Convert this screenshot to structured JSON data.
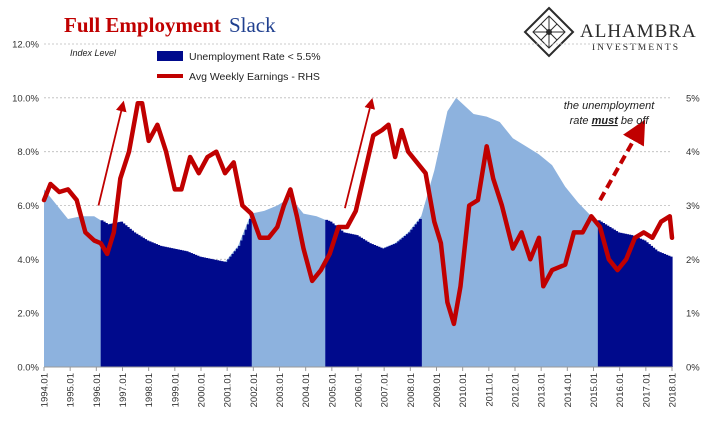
{
  "header": {
    "title_red": "Full Employment",
    "title_blue": "Slack",
    "logo_name": "ALHAMBRA",
    "logo_sub": "INVESTMENTS",
    "logo_icon": "diamond-lattice-icon"
  },
  "annotation": {
    "line1": "the unemployment",
    "line2_pre": "rate ",
    "line2_em": "must",
    "line2_post": " be off"
  },
  "colors": {
    "unemp_light": "#8db2de",
    "unemp_dark": "#000a8c",
    "earnings": "#c00000",
    "grid": "#bbbbbb",
    "title_red": "#c00000",
    "title_blue": "#1f3f8f"
  },
  "chart_data": {
    "type": "area",
    "title": "Full Employment Slack",
    "axis_note": "Index Level",
    "x_start": "1994-01",
    "x_end": "2018-01",
    "x_ticks": [
      "1994.01",
      "1995.01",
      "1996.01",
      "1997.01",
      "1998.01",
      "1999.01",
      "2000.01",
      "2001.01",
      "2002.01",
      "2003.01",
      "2004.01",
      "2005.01",
      "2006.01",
      "2007.01",
      "2008.01",
      "2009.01",
      "2010.01",
      "2011.01",
      "2012.01",
      "2013.01",
      "2014.01",
      "2015.01",
      "2016.01",
      "2017.01",
      "2018.01"
    ],
    "y_left": {
      "min": 0,
      "max": 12,
      "ticks": [
        "0.0%",
        "2.0%",
        "4.0%",
        "6.0%",
        "8.0%",
        "10.0%",
        "12.0%"
      ]
    },
    "y_right": {
      "min": 0,
      "max": 6,
      "ticks": [
        "0%",
        "1%",
        "2%",
        "3%",
        "4%",
        "5%"
      ]
    },
    "legend": [
      "Unemployment Rate < 5.5%",
      "Avg Weekly Earnings - RHS"
    ],
    "threshold": 5.5,
    "series": [
      {
        "name": "Unemployment Rate",
        "axis": "left",
        "points": [
          [
            "1994-01",
            6.6
          ],
          [
            "1994-06",
            6.1
          ],
          [
            "1994-12",
            5.5
          ],
          [
            "1995-06",
            5.6
          ],
          [
            "1995-12",
            5.6
          ],
          [
            "1996-06",
            5.3
          ],
          [
            "1996-12",
            5.4
          ],
          [
            "1997-06",
            5.0
          ],
          [
            "1997-12",
            4.7
          ],
          [
            "1998-06",
            4.5
          ],
          [
            "1998-12",
            4.4
          ],
          [
            "1999-06",
            4.3
          ],
          [
            "1999-12",
            4.1
          ],
          [
            "2000-06",
            4.0
          ],
          [
            "2000-12",
            3.9
          ],
          [
            "2001-06",
            4.5
          ],
          [
            "2001-12",
            5.7
          ],
          [
            "2002-06",
            5.8
          ],
          [
            "2002-12",
            6.0
          ],
          [
            "2003-06",
            6.3
          ],
          [
            "2003-12",
            5.7
          ],
          [
            "2004-06",
            5.6
          ],
          [
            "2004-12",
            5.4
          ],
          [
            "2005-06",
            5.0
          ],
          [
            "2005-12",
            4.9
          ],
          [
            "2006-06",
            4.6
          ],
          [
            "2006-12",
            4.4
          ],
          [
            "2007-06",
            4.6
          ],
          [
            "2007-12",
            5.0
          ],
          [
            "2008-06",
            5.6
          ],
          [
            "2008-12",
            7.3
          ],
          [
            "2009-06",
            9.5
          ],
          [
            "2009-10",
            10.0
          ],
          [
            "2010-06",
            9.4
          ],
          [
            "2010-12",
            9.3
          ],
          [
            "2011-06",
            9.1
          ],
          [
            "2011-12",
            8.5
          ],
          [
            "2012-06",
            8.2
          ],
          [
            "2012-12",
            7.9
          ],
          [
            "2013-06",
            7.5
          ],
          [
            "2013-12",
            6.7
          ],
          [
            "2014-06",
            6.1
          ],
          [
            "2014-12",
            5.6
          ],
          [
            "2015-06",
            5.3
          ],
          [
            "2015-12",
            5.0
          ],
          [
            "2016-06",
            4.9
          ],
          [
            "2016-12",
            4.7
          ],
          [
            "2017-06",
            4.3
          ],
          [
            "2017-12",
            4.1
          ],
          [
            "2018-01",
            4.1
          ]
        ]
      },
      {
        "name": "Avg Weekly Earnings - RHS",
        "axis": "right",
        "points": [
          [
            "1994-01",
            3.1
          ],
          [
            "1994-04",
            3.4
          ],
          [
            "1994-08",
            3.25
          ],
          [
            "1994-12",
            3.3
          ],
          [
            "1995-04",
            3.1
          ],
          [
            "1995-08",
            2.5
          ],
          [
            "1995-12",
            2.35
          ],
          [
            "1996-03",
            2.3
          ],
          [
            "1996-06",
            2.1
          ],
          [
            "1996-09",
            2.5
          ],
          [
            "1996-12",
            3.5
          ],
          [
            "1997-04",
            4.0
          ],
          [
            "1997-08",
            4.9
          ],
          [
            "1997-10",
            4.9
          ],
          [
            "1998-01",
            4.2
          ],
          [
            "1998-05",
            4.5
          ],
          [
            "1998-09",
            4.0
          ],
          [
            "1999-01",
            3.3
          ],
          [
            "1999-04",
            3.3
          ],
          [
            "1999-08",
            3.9
          ],
          [
            "1999-12",
            3.6
          ],
          [
            "2000-04",
            3.9
          ],
          [
            "2000-08",
            4.0
          ],
          [
            "2000-12",
            3.6
          ],
          [
            "2001-04",
            3.8
          ],
          [
            "2001-08",
            3.0
          ],
          [
            "2001-12",
            2.85
          ],
          [
            "2002-04",
            2.4
          ],
          [
            "2002-08",
            2.4
          ],
          [
            "2002-12",
            2.6
          ],
          [
            "2003-03",
            3.0
          ],
          [
            "2003-06",
            3.3
          ],
          [
            "2003-09",
            2.8
          ],
          [
            "2003-12",
            2.2
          ],
          [
            "2004-04",
            1.6
          ],
          [
            "2004-08",
            1.8
          ],
          [
            "2004-12",
            2.1
          ],
          [
            "2005-04",
            2.6
          ],
          [
            "2005-08",
            2.6
          ],
          [
            "2005-12",
            2.9
          ],
          [
            "2006-04",
            3.6
          ],
          [
            "2006-08",
            4.3
          ],
          [
            "2006-12",
            4.4
          ],
          [
            "2007-03",
            4.5
          ],
          [
            "2007-06",
            3.9
          ],
          [
            "2007-09",
            4.4
          ],
          [
            "2007-12",
            4.0
          ],
          [
            "2008-04",
            3.8
          ],
          [
            "2008-08",
            3.6
          ],
          [
            "2008-12",
            2.7
          ],
          [
            "2009-03",
            2.3
          ],
          [
            "2009-06",
            1.2
          ],
          [
            "2009-09",
            0.8
          ],
          [
            "2009-12",
            1.5
          ],
          [
            "2010-04",
            3.0
          ],
          [
            "2010-08",
            3.1
          ],
          [
            "2010-12",
            4.1
          ],
          [
            "2011-03",
            3.5
          ],
          [
            "2011-07",
            3.0
          ],
          [
            "2011-12",
            2.2
          ],
          [
            "2012-04",
            2.5
          ],
          [
            "2012-08",
            2.0
          ],
          [
            "2012-12",
            2.4
          ],
          [
            "2013-02",
            1.5
          ],
          [
            "2013-06",
            1.8
          ],
          [
            "2013-12",
            1.9
          ],
          [
            "2014-04",
            2.5
          ],
          [
            "2014-08",
            2.5
          ],
          [
            "2014-12",
            2.8
          ],
          [
            "2015-04",
            2.6
          ],
          [
            "2015-08",
            2.0
          ],
          [
            "2015-12",
            1.8
          ],
          [
            "2016-04",
            2.0
          ],
          [
            "2016-08",
            2.4
          ],
          [
            "2016-12",
            2.5
          ],
          [
            "2017-04",
            2.4
          ],
          [
            "2017-08",
            2.7
          ],
          [
            "2017-12",
            2.8
          ],
          [
            "2018-01",
            2.4
          ]
        ]
      }
    ],
    "arrows": [
      {
        "from": [
          "1996-02",
          3.0
        ],
        "to": [
          "1997-01",
          4.85
        ],
        "dashed": false
      },
      {
        "from": [
          "2005-07",
          2.95
        ],
        "to": [
          "2006-07",
          4.9
        ],
        "dashed": false
      },
      {
        "from": [
          "2015-04",
          3.1
        ],
        "to": [
          "2016-10",
          4.4
        ],
        "dashed": true
      }
    ]
  }
}
